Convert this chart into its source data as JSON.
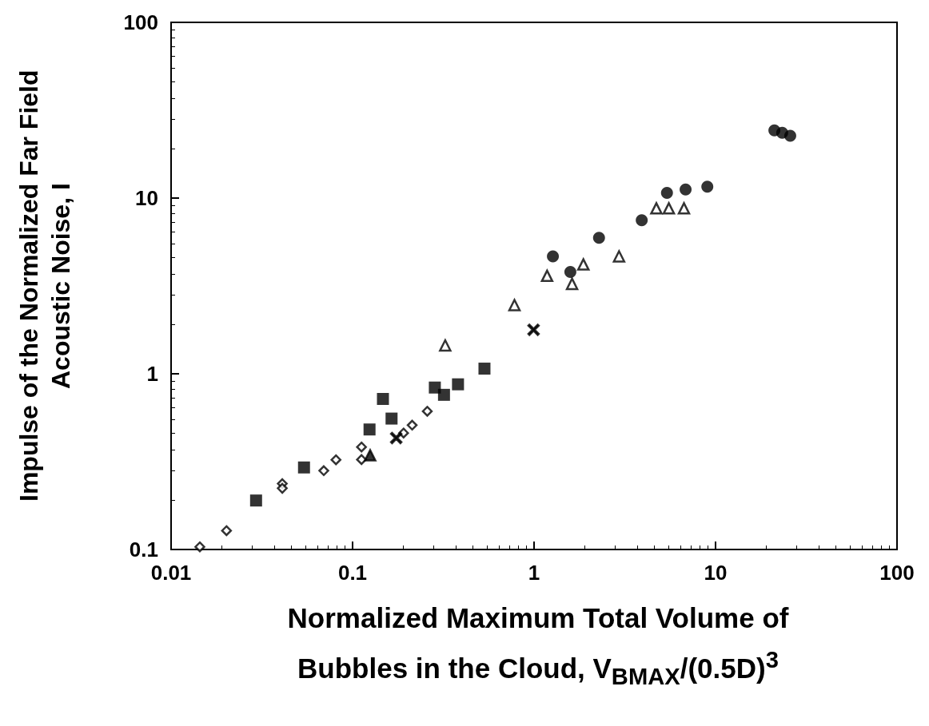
{
  "chart_data": {
    "type": "scatter",
    "xlabel": "Normalized Maximum Total Volume of Bubbles in the Cloud, V$_{BMAX}$/(0.5D)$^{3}$",
    "ylabel": "Impulse of the Normalized Far Field Acoustic Noise, I",
    "log": "xy",
    "grid": false,
    "xlim": [
      0.01,
      100
    ],
    "xticks": [
      0.01,
      0.1,
      1,
      10,
      100
    ],
    "ylim": [
      0.1,
      100
    ],
    "yticks": [
      0.1,
      1,
      10,
      100
    ],
    "series": [
      {
        "color": "#000000",
        "marker": "square",
        "x": [
          0.0294,
          0.054,
          0.124,
          0.147,
          0.164,
          0.284,
          0.319,
          0.381,
          0.533
        ],
        "values": [
          0.19,
          0.293,
          0.482,
          0.719,
          0.556,
          0.835,
          0.759,
          0.871,
          1.07
        ]
      },
      {
        "color": "#ffffff",
        "marker": "diamond",
        "x": [
          0.0144,
          0.0202,
          0.041,
          0.041,
          0.0694,
          0.081,
          0.112,
          0.112,
          0.191,
          0.213,
          0.258
        ],
        "values": [
          0.1035,
          0.128,
          0.237,
          0.223,
          0.281,
          0.324,
          0.383,
          0.325,
          0.46,
          0.51,
          0.612
        ]
      },
      {
        "color": "#000000",
        "marker": "triangle",
        "x": [
          0.125
        ],
        "values": [
          0.344
        ]
      },
      {
        "color": "#000000",
        "marker": "cross",
        "x": [
          0.174,
          0.994
        ],
        "values": [
          0.431,
          1.78
        ]
      },
      {
        "color": "#ffffff",
        "marker": "triangle",
        "x": [
          0.324,
          0.78,
          1.18,
          1.62,
          1.87,
          2.94,
          4.72,
          5.53,
          6.7
        ],
        "values": [
          1.45,
          2.46,
          3.61,
          3.25,
          4.19,
          4.66,
          8.74,
          8.74,
          8.74
        ]
      },
      {
        "color": "#000000",
        "marker": "circle",
        "x": [
          1.27,
          1.585,
          2.28,
          3.92,
          5.4,
          6.84,
          9.01,
          21.1,
          23.3,
          25.8
        ],
        "values": [
          4.66,
          3.8,
          5.94,
          7.47,
          10.7,
          11.2,
          11.6,
          24.3,
          23.5,
          22.6
        ]
      }
    ]
  }
}
